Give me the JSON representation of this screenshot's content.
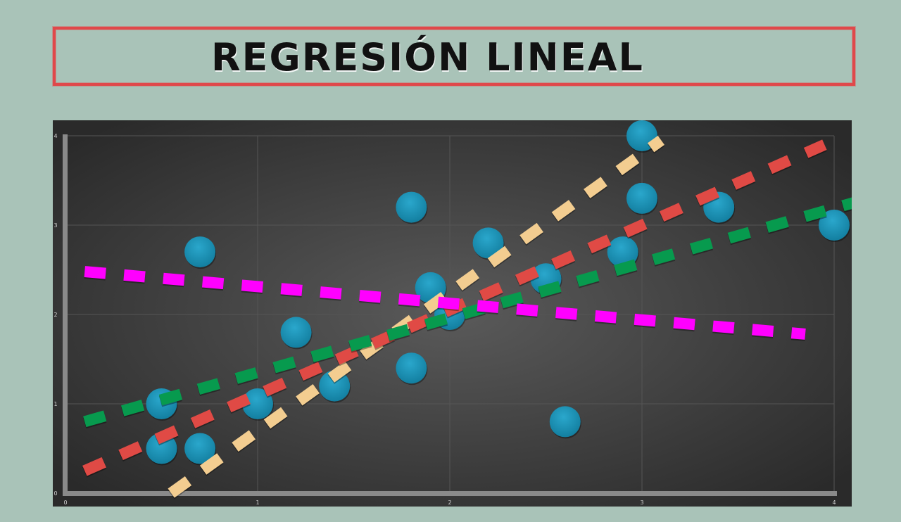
{
  "title": "REGRESIÓN LINEAL",
  "colors": {
    "background": "#a9c3b8",
    "title_border": "#e0484a",
    "points": "#1d95b9"
  },
  "chart_data": {
    "type": "scatter",
    "title": "REGRESIÓN LINEAL",
    "xlabel": "",
    "ylabel": "",
    "xlim": [
      0,
      4
    ],
    "ylim": [
      0,
      4
    ],
    "grid": true,
    "x_ticks": [
      "0",
      "1",
      "2",
      "3",
      "4"
    ],
    "y_ticks": [
      "0",
      "1",
      "2",
      "3",
      "4"
    ],
    "points": [
      {
        "x": 0.5,
        "y": 1.0
      },
      {
        "x": 0.5,
        "y": 0.5
      },
      {
        "x": 0.7,
        "y": 2.7
      },
      {
        "x": 0.7,
        "y": 0.5
      },
      {
        "x": 1.0,
        "y": 1.0
      },
      {
        "x": 1.2,
        "y": 1.8
      },
      {
        "x": 1.4,
        "y": 1.2
      },
      {
        "x": 1.8,
        "y": 3.2
      },
      {
        "x": 1.8,
        "y": 1.4
      },
      {
        "x": 1.9,
        "y": 2.3
      },
      {
        "x": 2.0,
        "y": 2.0
      },
      {
        "x": 2.2,
        "y": 2.8
      },
      {
        "x": 2.5,
        "y": 2.4
      },
      {
        "x": 2.6,
        "y": 0.8
      },
      {
        "x": 2.9,
        "y": 2.7
      },
      {
        "x": 3.0,
        "y": 4.0
      },
      {
        "x": 3.0,
        "y": 3.3
      },
      {
        "x": 3.4,
        "y": 3.2
      },
      {
        "x": 4.0,
        "y": 3.0
      }
    ],
    "lines": [
      {
        "color": "#f3cd90",
        "x": [
          0.55,
          3.1
        ],
        "y": [
          0.0,
          3.95
        ]
      },
      {
        "color": "#e04a45",
        "x": [
          0.1,
          3.95
        ],
        "y": [
          0.25,
          3.9
        ]
      },
      {
        "color": "#079a4e",
        "x": [
          0.1,
          4.1
        ],
        "y": [
          0.8,
          3.25
        ]
      },
      {
        "color": "#ff00ff",
        "x": [
          0.1,
          3.85
        ],
        "y": [
          2.48,
          1.78
        ]
      }
    ]
  }
}
